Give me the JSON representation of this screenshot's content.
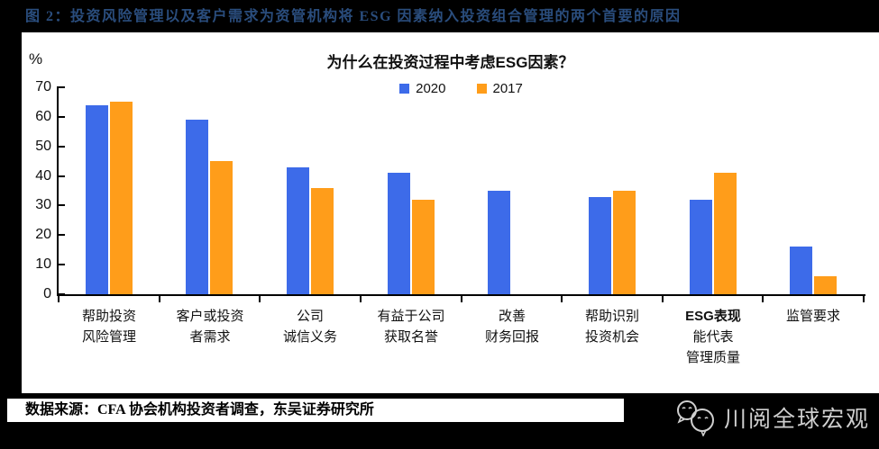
{
  "figure_title": "图 2：投资风险管理以及客户需求为资管机构将 ESG 因素纳入投资组合管理的两个首要的原因",
  "source_line": "数据来源：CFA 协会机构投资者调查，东吴证券研究所",
  "watermark": {
    "icon": "wechat-icon",
    "text": "川阅全球宏观"
  },
  "colors": {
    "page_background": "#000000",
    "panel_background": "#ffffff",
    "figure_title_text": "#2a4d7d",
    "axis": "#000000",
    "watermark_text": "#cfcfcf"
  },
  "chart_data": {
    "type": "bar",
    "title": "为什么在投资过程中考虑ESG因素？",
    "ylabel": "%",
    "ylim": [
      0,
      70
    ],
    "yticks": [
      0,
      10,
      20,
      30,
      40,
      50,
      60,
      70
    ],
    "grid": false,
    "legend_position": "top-center",
    "categories": [
      "帮助投资\n风险管理",
      "客户或投资\n者需求",
      "公司\n诚信义务",
      "有益于公司\n获取名誉",
      "改善\n财务回报",
      "帮助识别\n投资机会",
      "ESG表现\n能代表\n管理质量",
      "监管要求"
    ],
    "series": [
      {
        "name": "2020",
        "color": "#3d6be9",
        "values": [
          64,
          59,
          43,
          41,
          35,
          33,
          32,
          16
        ]
      },
      {
        "name": "2017",
        "color": "#ff9d1a",
        "values": [
          65,
          45,
          36,
          32,
          null,
          35,
          41,
          6
        ]
      }
    ]
  }
}
